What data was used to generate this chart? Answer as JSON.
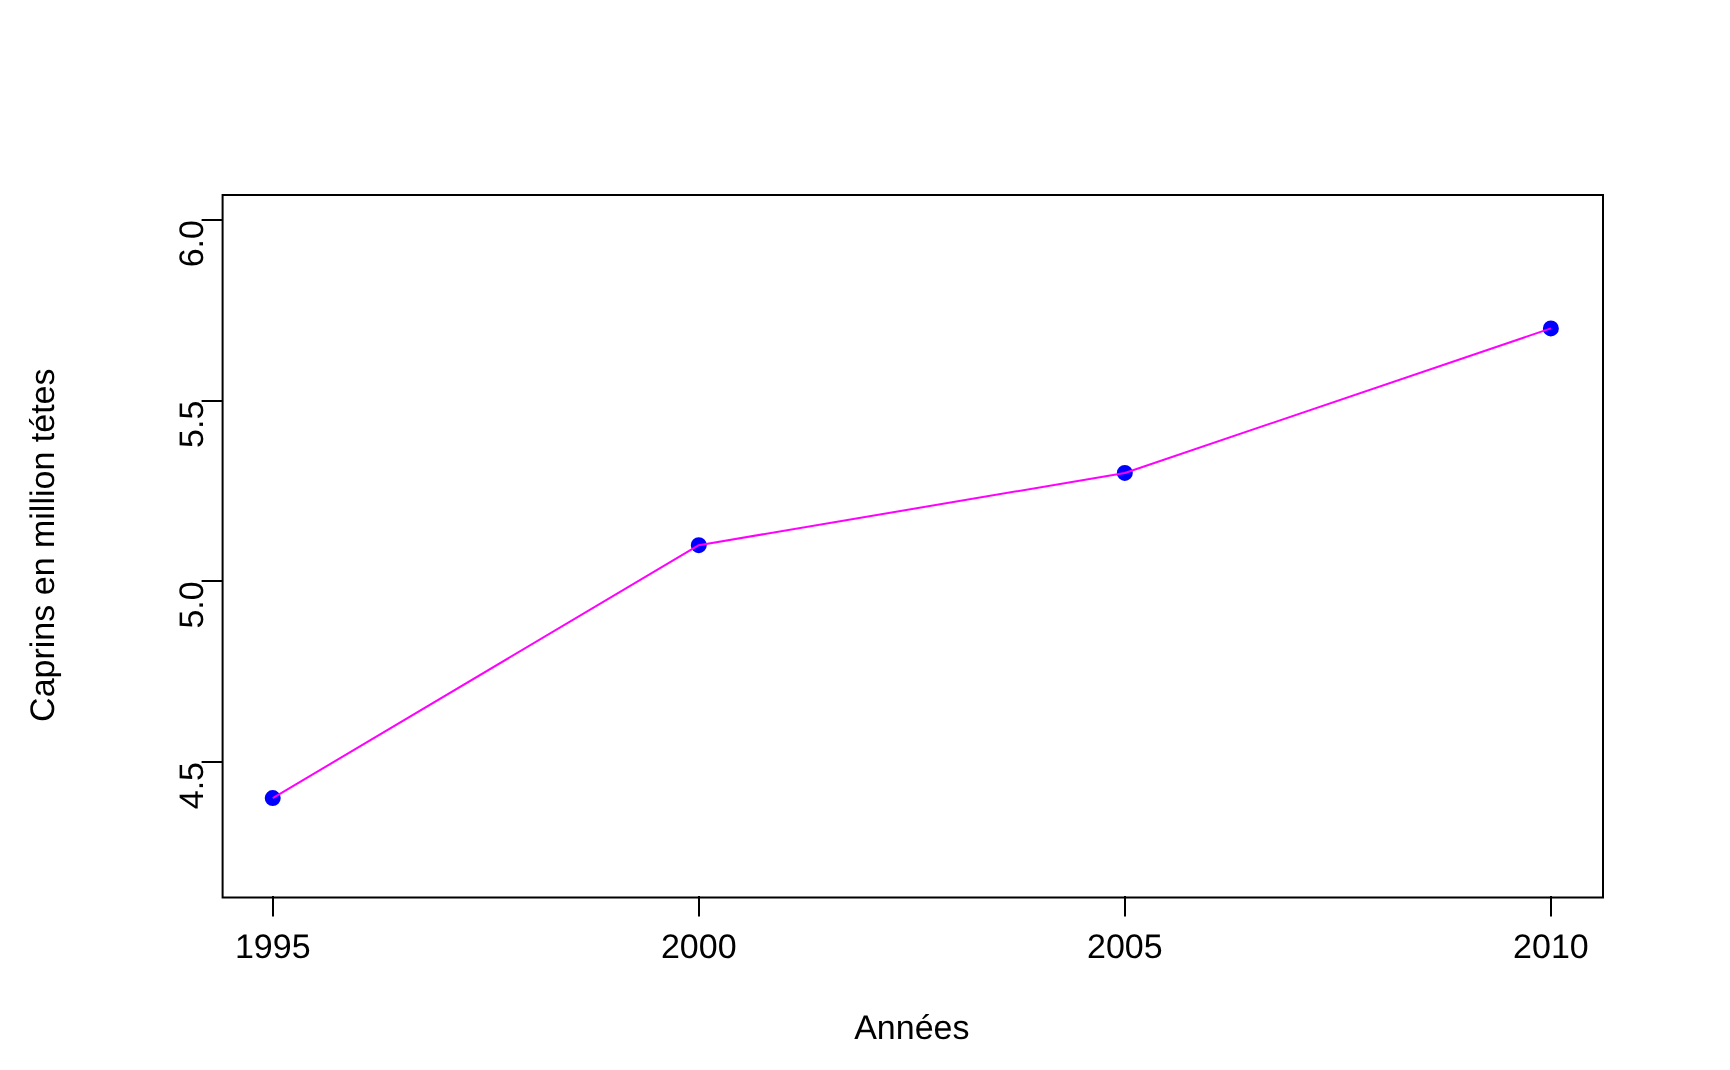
{
  "chart_data": {
    "type": "line",
    "xlabel": "Années",
    "ylabel": "Caprins en million tétes",
    "x": [
      1995,
      2000,
      2005,
      2010
    ],
    "series": [
      {
        "type": "line",
        "color": "#ff00ff",
        "marker": "none",
        "values": [
          4.4,
          5.1,
          5.3,
          5.7
        ]
      },
      {
        "type": "scatter",
        "color": "#0000ff",
        "marker": "circle",
        "values": [
          4.4,
          5.1,
          5.3,
          5.7
        ]
      }
    ],
    "xlim": [
      1994.4,
      2010.6
    ],
    "ylim": [
      4.128,
      6.072
    ],
    "xticks": [
      1995,
      2000,
      2005,
      2010
    ],
    "yticks": [
      {
        "value": 4.5,
        "label": "4.5"
      },
      {
        "value": 5,
        "label": "5.0"
      },
      {
        "value": 5.5,
        "label": "5.5"
      },
      {
        "value": 6,
        "label": "6.0"
      }
    ],
    "grid": false,
    "legend": false
  }
}
